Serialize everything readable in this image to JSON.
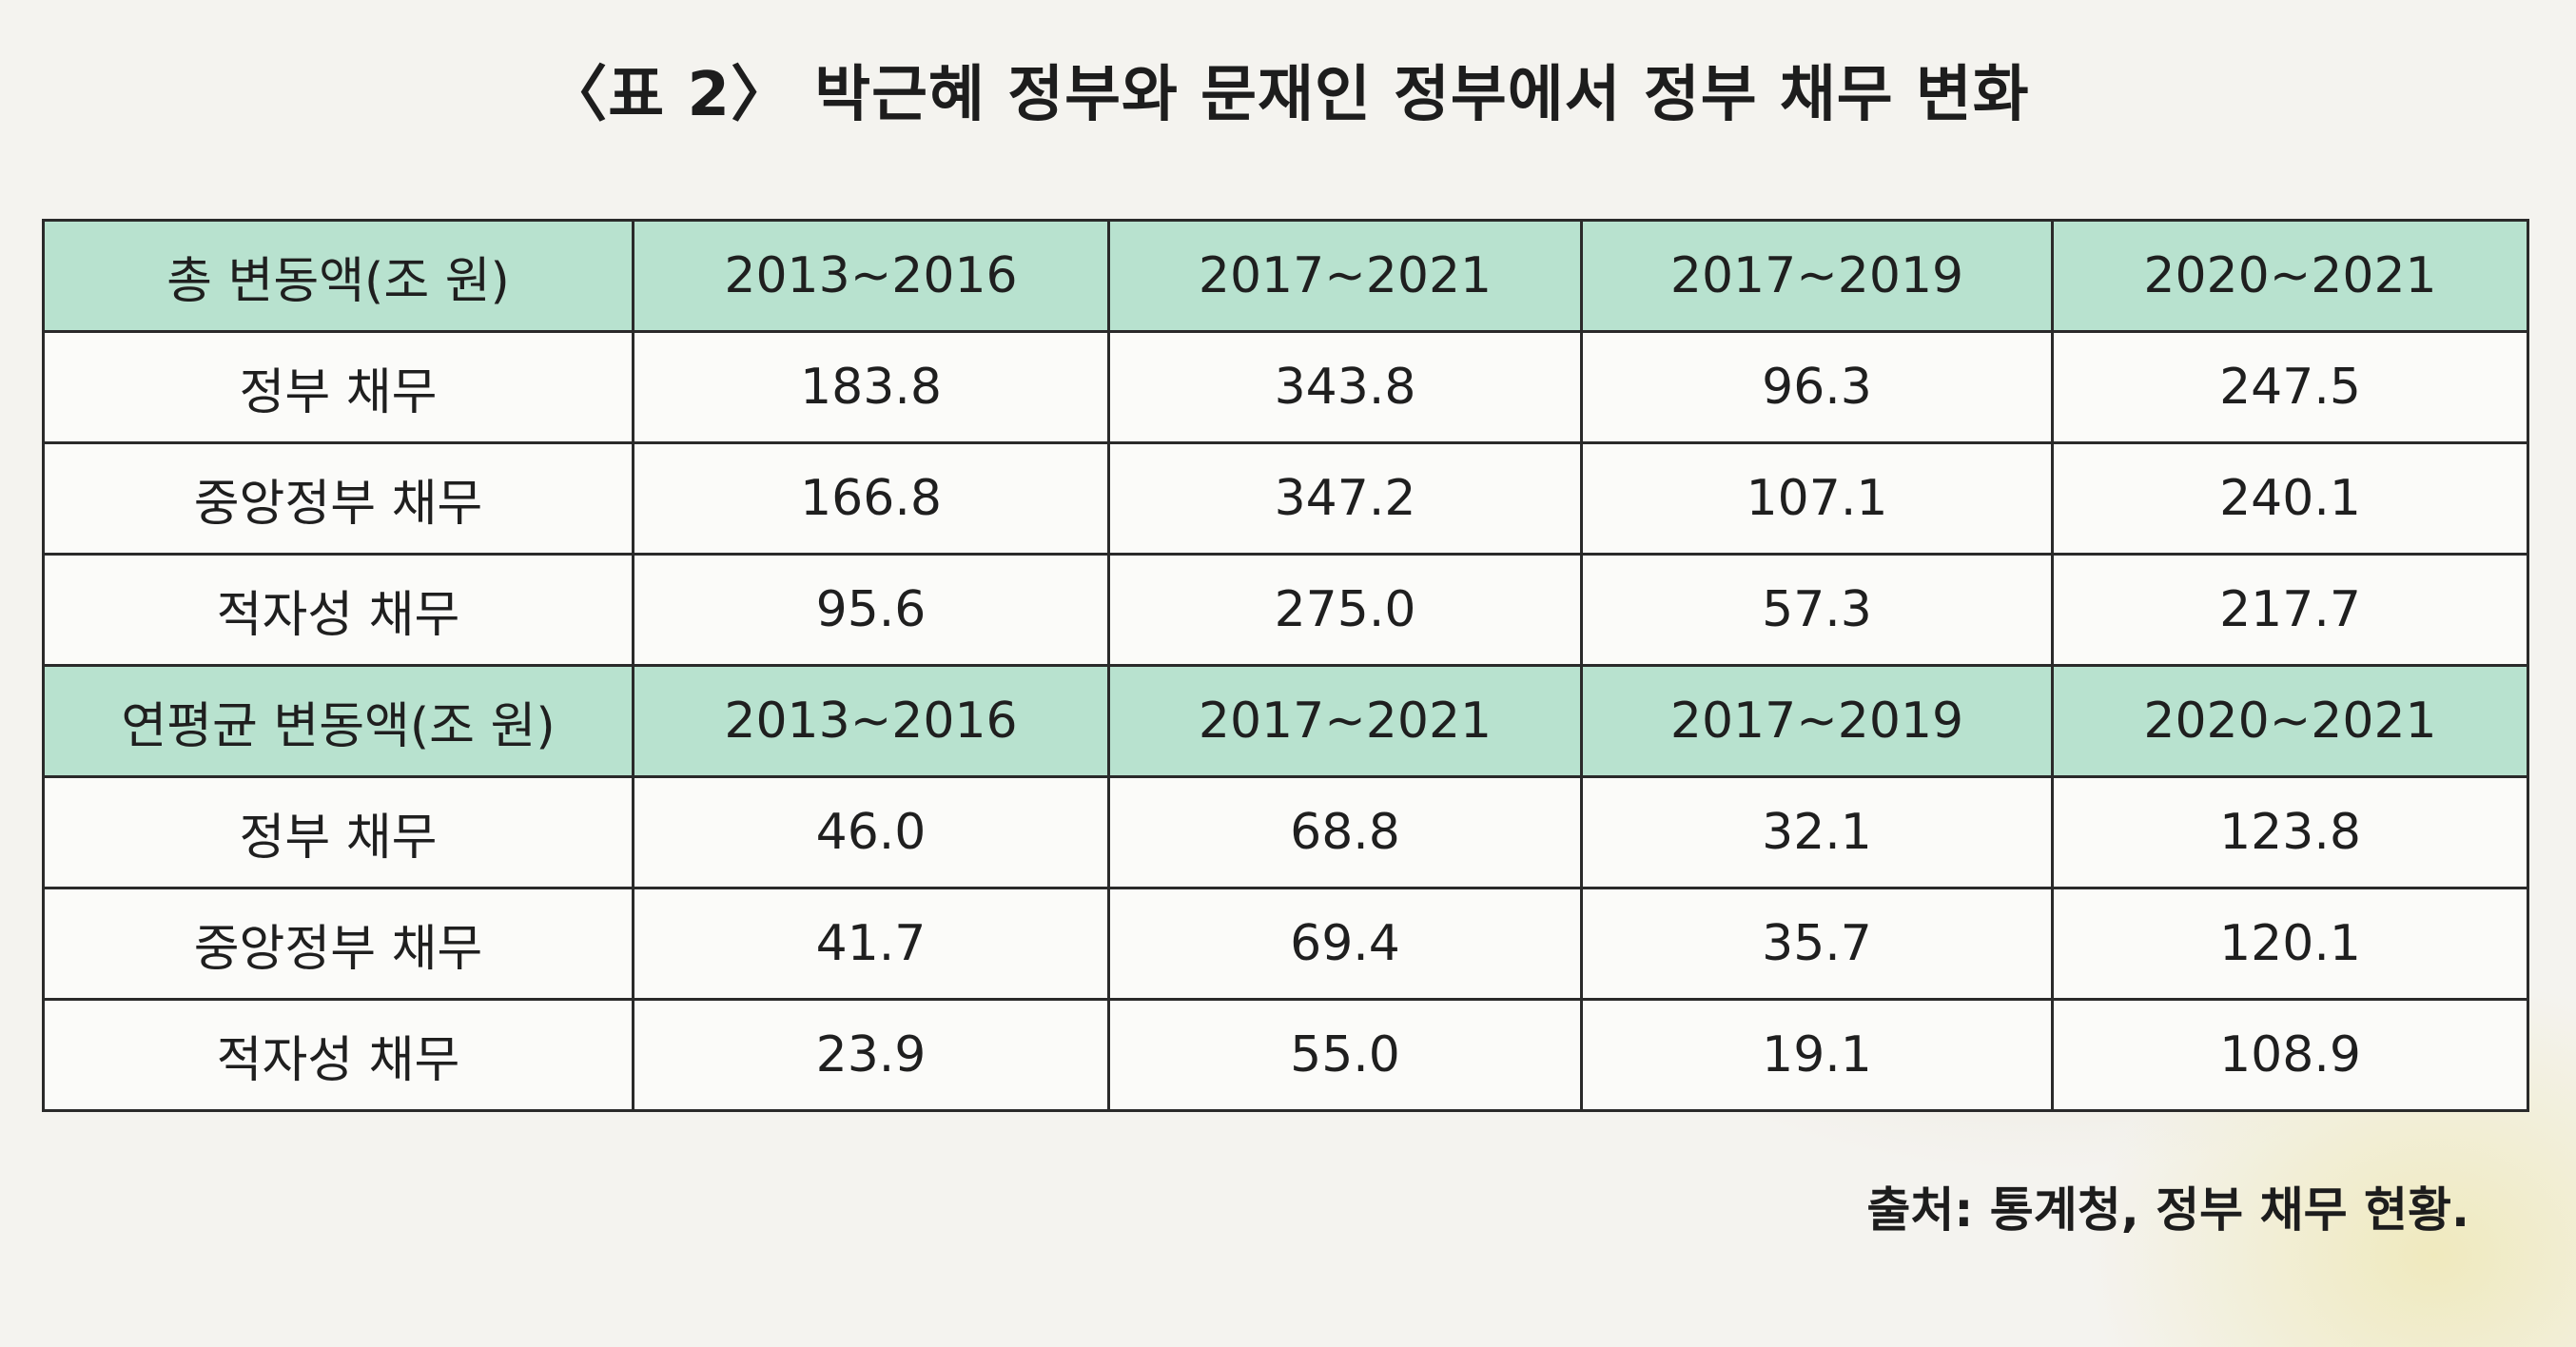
{
  "title": "〈표 2〉 박근혜 정부와 문재인 정부에서 정부 채무 변화",
  "sections": [
    {
      "header": [
        "총 변동액(조 원)",
        "2013~2016",
        "2017~2021",
        "2017~2019",
        "2020~2021"
      ],
      "rows": [
        [
          "정부 채무",
          "183.8",
          "343.8",
          "96.3",
          "247.5"
        ],
        [
          "중앙정부 채무",
          "166.8",
          "347.2",
          "107.1",
          "240.1"
        ],
        [
          "적자성 채무",
          "95.6",
          "275.0",
          "57.3",
          "217.7"
        ]
      ]
    },
    {
      "header": [
        "연평균 변동액(조 원)",
        "2013~2016",
        "2017~2021",
        "2017~2019",
        "2020~2021"
      ],
      "rows": [
        [
          "정부 채무",
          "46.0",
          "68.8",
          "32.1",
          "123.8"
        ],
        [
          "중앙정부 채무",
          "41.7",
          "69.4",
          "35.7",
          "120.1"
        ],
        [
          "적자성 채무",
          "23.9",
          "55.0",
          "19.1",
          "108.9"
        ]
      ]
    }
  ],
  "source": "출처: 통계청, 정부 채무 현황.",
  "colors": {
    "header_bg": "#b8e2cf",
    "body_bg": "#fbfbf9",
    "border": "#2a2a2a"
  }
}
